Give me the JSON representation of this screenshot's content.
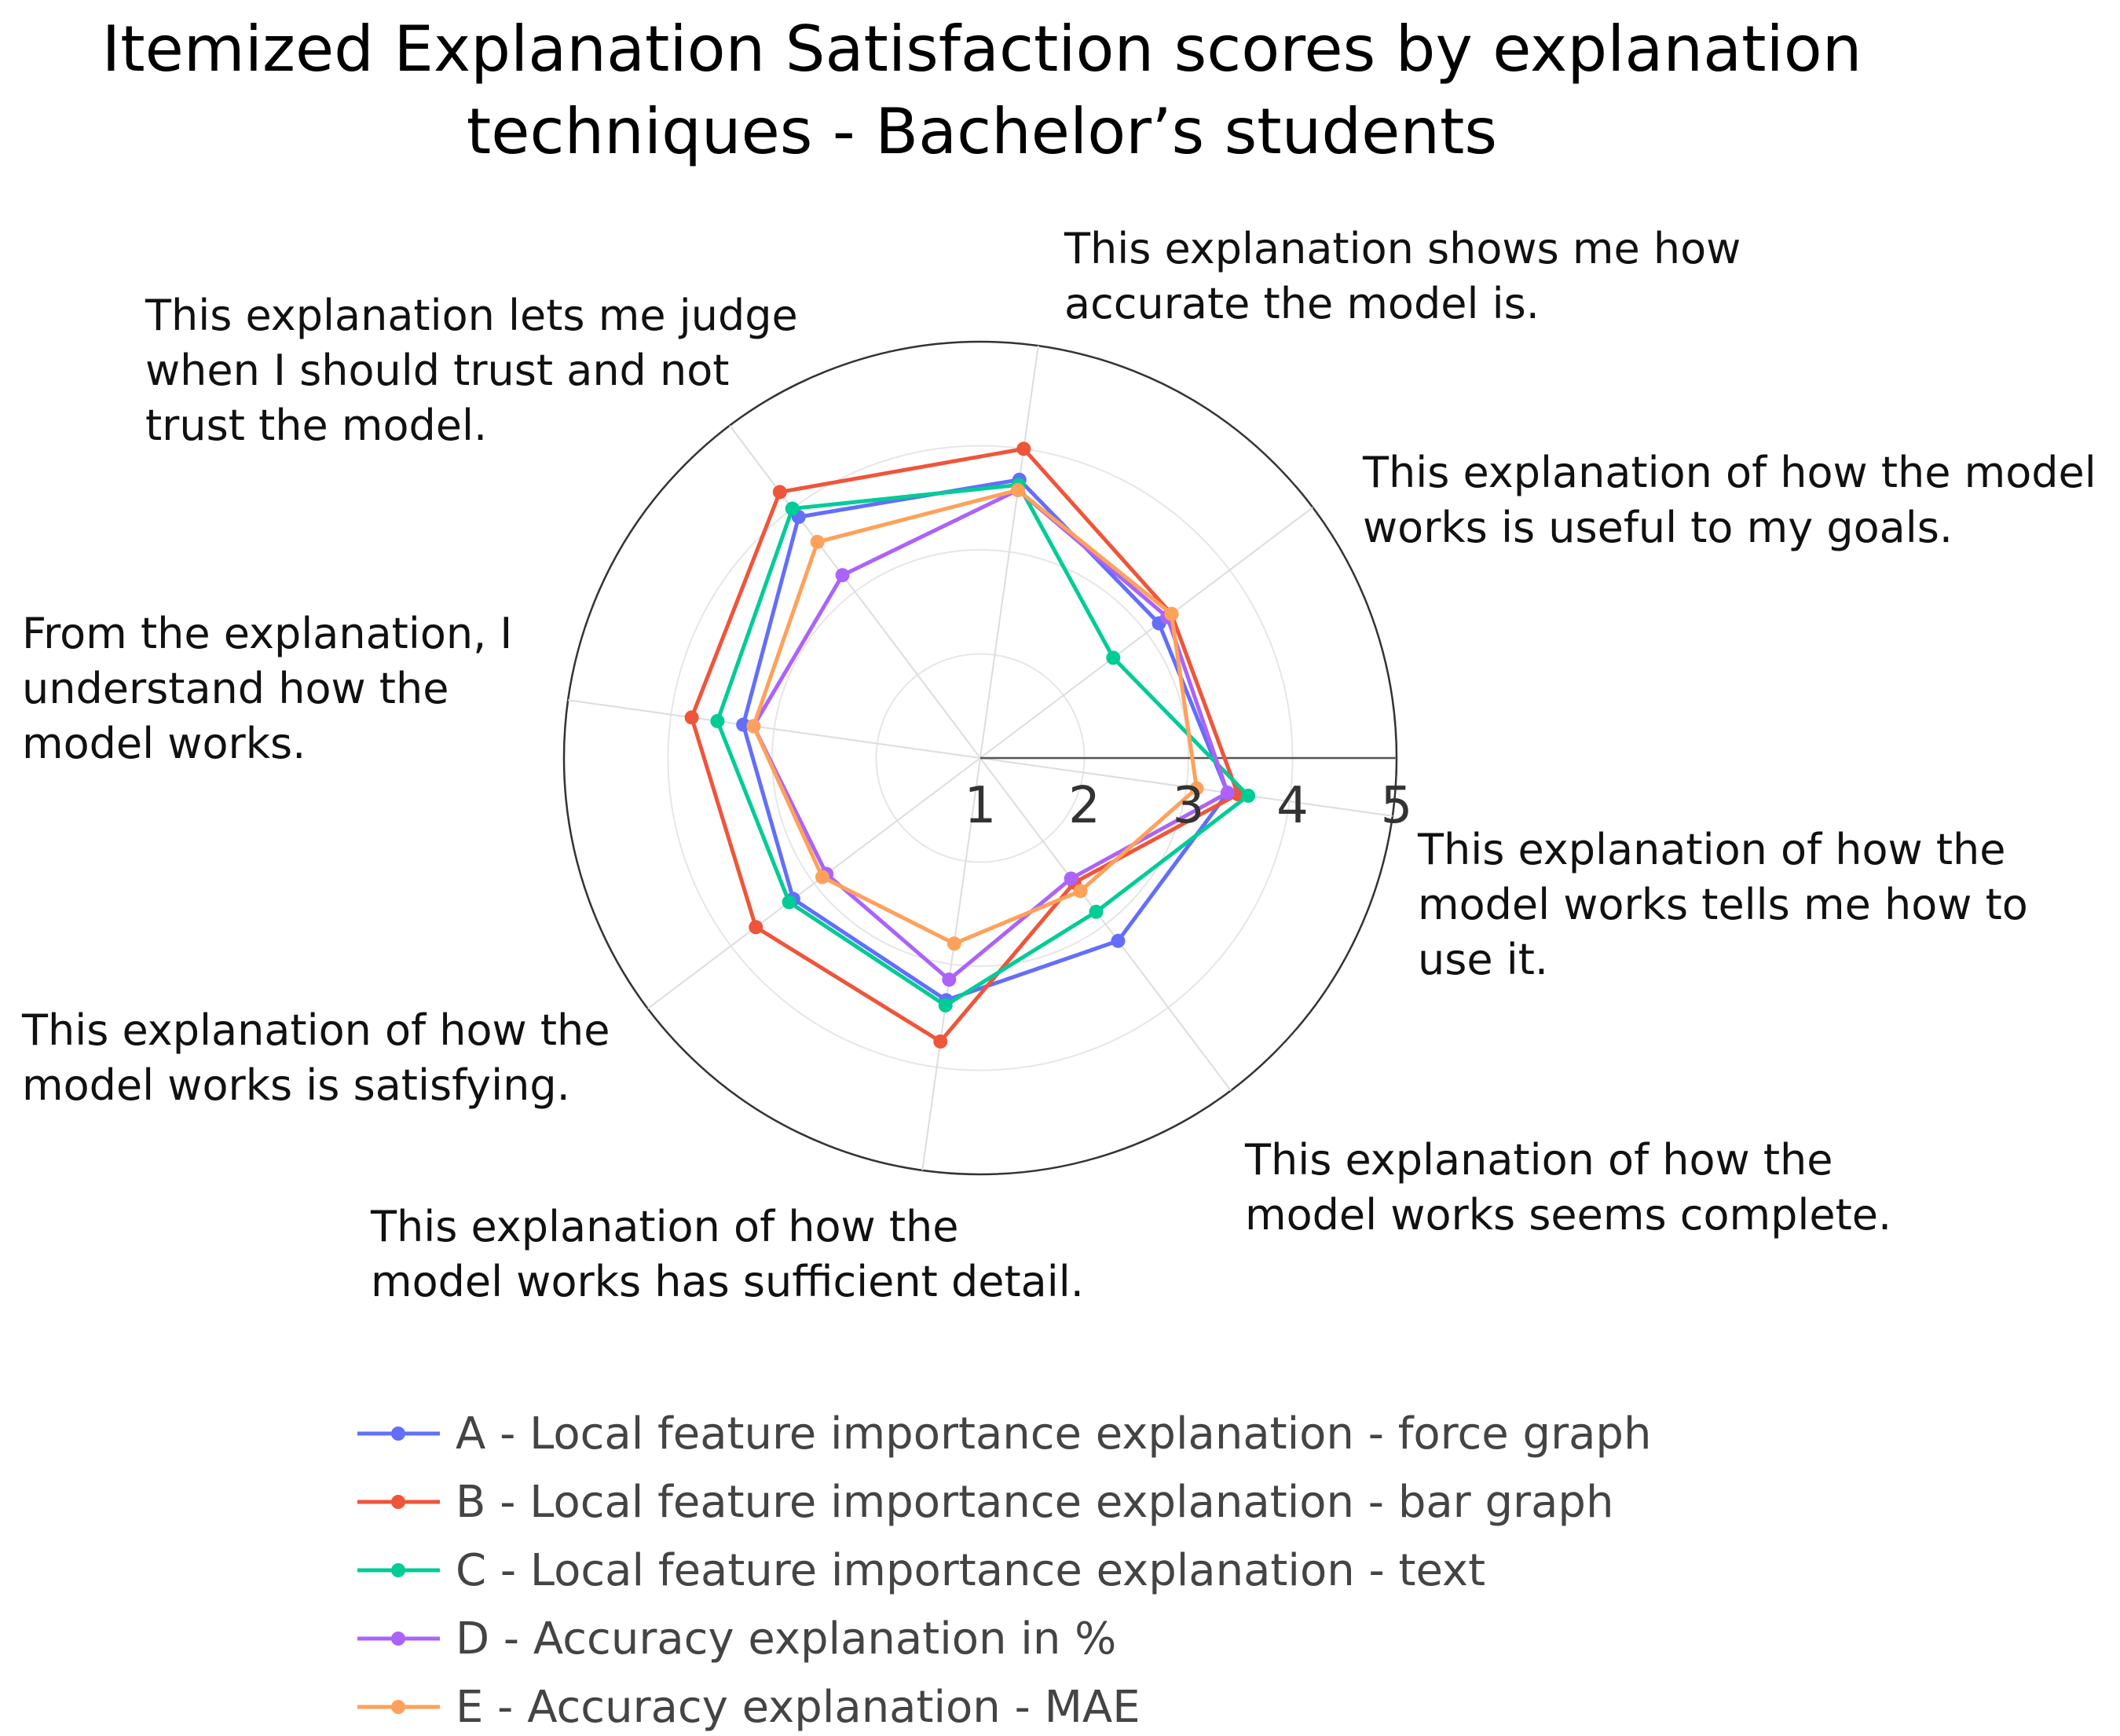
{
  "chart_data": {
    "type": "radar",
    "title": [
      "Itemized Explanation Satisfaction scores by explanation",
      "techniques - Bachelor’s students"
    ],
    "axes": [
      {
        "lines": [
          "This explanation shows me how",
          "accurate the model is."
        ]
      },
      {
        "lines": [
          "This explanation of how the model",
          "works is useful to my goals."
        ]
      },
      {
        "lines": [
          "This explanation of how the",
          "model works tells me how to",
          "use it."
        ]
      },
      {
        "lines": [
          "This explanation of how the",
          "model works seems complete."
        ]
      },
      {
        "lines": [
          "This explanation of how the",
          "model works has sufficient detail."
        ]
      },
      {
        "lines": [
          "This explanation of how the",
          "model works is satisfying."
        ]
      },
      {
        "lines": [
          "From the explanation, I",
          "understand how the",
          "model works."
        ]
      },
      {
        "lines": [
          "This explanation lets me judge",
          "when I should trust and not",
          "trust the model."
        ]
      }
    ],
    "radial_ticks": [
      "1",
      "2",
      "3",
      "4",
      "5"
    ],
    "radial_range": [
      1,
      5
    ],
    "series": [
      {
        "name": "A - Local feature importance explanation - force graph",
        "color": "#636efa",
        "values": [
          3.7,
          3.15,
          3.4,
          3.2,
          3.35,
          3.25,
          3.3,
          3.9
        ]
      },
      {
        "name": "B - Local feature importance explanation - bar graph",
        "color": "#ef553b",
        "values": [
          4.0,
          3.3,
          3.5,
          2.5,
          3.75,
          3.7,
          3.8,
          4.2
        ]
      },
      {
        "name": "C - Local feature importance explanation - text",
        "color": "#00cc96",
        "values": [
          3.65,
          2.6,
          3.6,
          2.85,
          3.4,
          3.3,
          3.55,
          4.0
        ]
      },
      {
        "name": "D - Accuracy explanation in %",
        "color": "#ab63fa",
        "values": [
          3.6,
          3.25,
          3.4,
          2.45,
          3.15,
          2.85,
          3.2,
          3.2
        ]
      },
      {
        "name": "E - Accuracy explanation - MAE",
        "color": "#ffa15a",
        "values": [
          3.6,
          3.3,
          3.1,
          2.6,
          2.8,
          2.9,
          3.2,
          3.6
        ]
      }
    ],
    "grid": true,
    "legend_position": "bottom"
  }
}
